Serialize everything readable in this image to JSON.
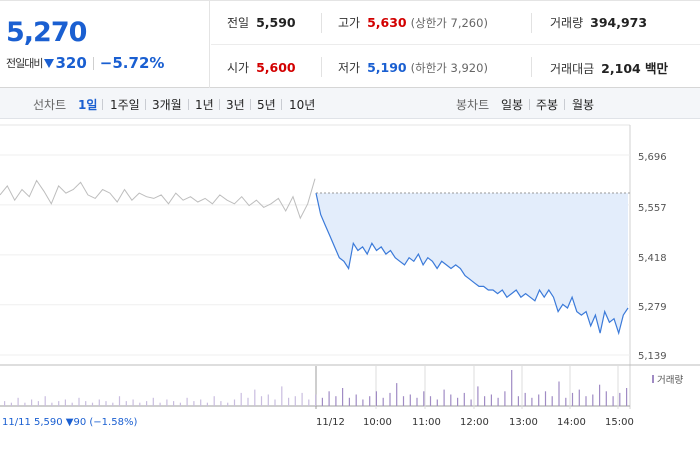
{
  "quote": {
    "price": "5,270",
    "change_label": "전일대비",
    "change": "320",
    "change_rate": "−5.72%",
    "prev_close": {
      "label": "전일",
      "value": "5,590"
    },
    "high": {
      "label": "고가",
      "value": "5,630",
      "limit_label": "(상한가 7,260)"
    },
    "volume": {
      "label": "거래량",
      "value": "394,973"
    },
    "open": {
      "label": "시가",
      "value": "5,600"
    },
    "low": {
      "label": "저가",
      "value": "5,190",
      "limit_label": "(하한가 3,920)"
    },
    "trade_amount": {
      "label": "거래대금",
      "value": "2,104 백만"
    }
  },
  "toolbar": {
    "line_chart_label": "선차트",
    "periods": [
      "1일",
      "1주일",
      "3개월",
      "1년",
      "3년",
      "5년",
      "10년"
    ],
    "active_period": "1일",
    "candle_chart_label": "봉차트",
    "candle_periods": [
      "일봉",
      "주봉",
      "월봉"
    ]
  },
  "chart_data": {
    "type": "line",
    "price_axis_ticks": [
      "5,696",
      "5,557",
      "5,418",
      "5,279",
      "5,139"
    ],
    "ylim": [
      5139,
      5696
    ],
    "time_axis_ticks": [
      "11/12",
      "10:00",
      "11:00",
      "12:00",
      "13:00",
      "14:00",
      "15:00"
    ],
    "legend_volume": "거래량",
    "prev_day_info": "11/11  5,590 ▼90 (−1.58%)",
    "previous_day_series": [
      5585,
      5610,
      5570,
      5600,
      5580,
      5625,
      5595,
      5560,
      5610,
      5590,
      5600,
      5620,
      5585,
      5575,
      5600,
      5590,
      5565,
      5600,
      5570,
      5590,
      5580,
      5575,
      5585,
      5560,
      5590,
      5570,
      5580,
      5565,
      5575,
      5560,
      5585,
      5570,
      5560,
      5580,
      5555,
      5570,
      5550,
      5560,
      5575,
      5540,
      5580,
      5520,
      5560,
      5630
    ],
    "today_series": [
      5590,
      5530,
      5500,
      5470,
      5440,
      5410,
      5400,
      5380,
      5450,
      5430,
      5440,
      5420,
      5450,
      5430,
      5440,
      5420,
      5430,
      5410,
      5400,
      5390,
      5410,
      5400,
      5420,
      5390,
      5410,
      5400,
      5380,
      5400,
      5390,
      5380,
      5390,
      5380,
      5360,
      5350,
      5340,
      5330,
      5330,
      5320,
      5320,
      5310,
      5320,
      5300,
      5310,
      5320,
      5300,
      5310,
      5300,
      5290,
      5320,
      5300,
      5320,
      5300,
      5260,
      5280,
      5270,
      5300,
      5260,
      5250,
      5260,
      5220,
      5250,
      5200,
      5260,
      5230,
      5240,
      5200,
      5250,
      5270
    ],
    "volume_series": [
      3,
      2,
      5,
      2,
      4,
      3,
      6,
      2,
      3,
      4,
      2,
      5,
      3,
      2,
      4,
      3,
      2,
      6,
      3,
      4,
      2,
      3,
      5,
      2,
      4,
      3,
      2,
      5,
      3,
      4,
      2,
      6,
      3,
      2,
      4,
      8,
      5,
      10,
      6,
      7,
      4,
      12,
      5,
      6,
      8,
      4,
      7,
      5,
      9,
      6,
      11,
      5,
      7,
      4,
      6,
      9,
      5,
      8,
      14,
      6,
      7,
      5,
      9,
      6,
      4,
      10,
      7,
      5,
      8,
      4,
      12,
      6,
      7,
      5,
      9,
      22,
      6,
      8,
      5,
      7,
      9,
      6,
      15,
      5,
      8,
      10,
      6,
      7,
      13,
      9,
      6,
      8,
      11
    ]
  },
  "colors": {
    "price_blue": "#1a5fd1",
    "price_red": "#d20000",
    "today_line": "#3b7ad9",
    "fill_area": "#e3edfb",
    "prev_line": "#bdbdbd",
    "volume_bar": "#a08bc4"
  }
}
